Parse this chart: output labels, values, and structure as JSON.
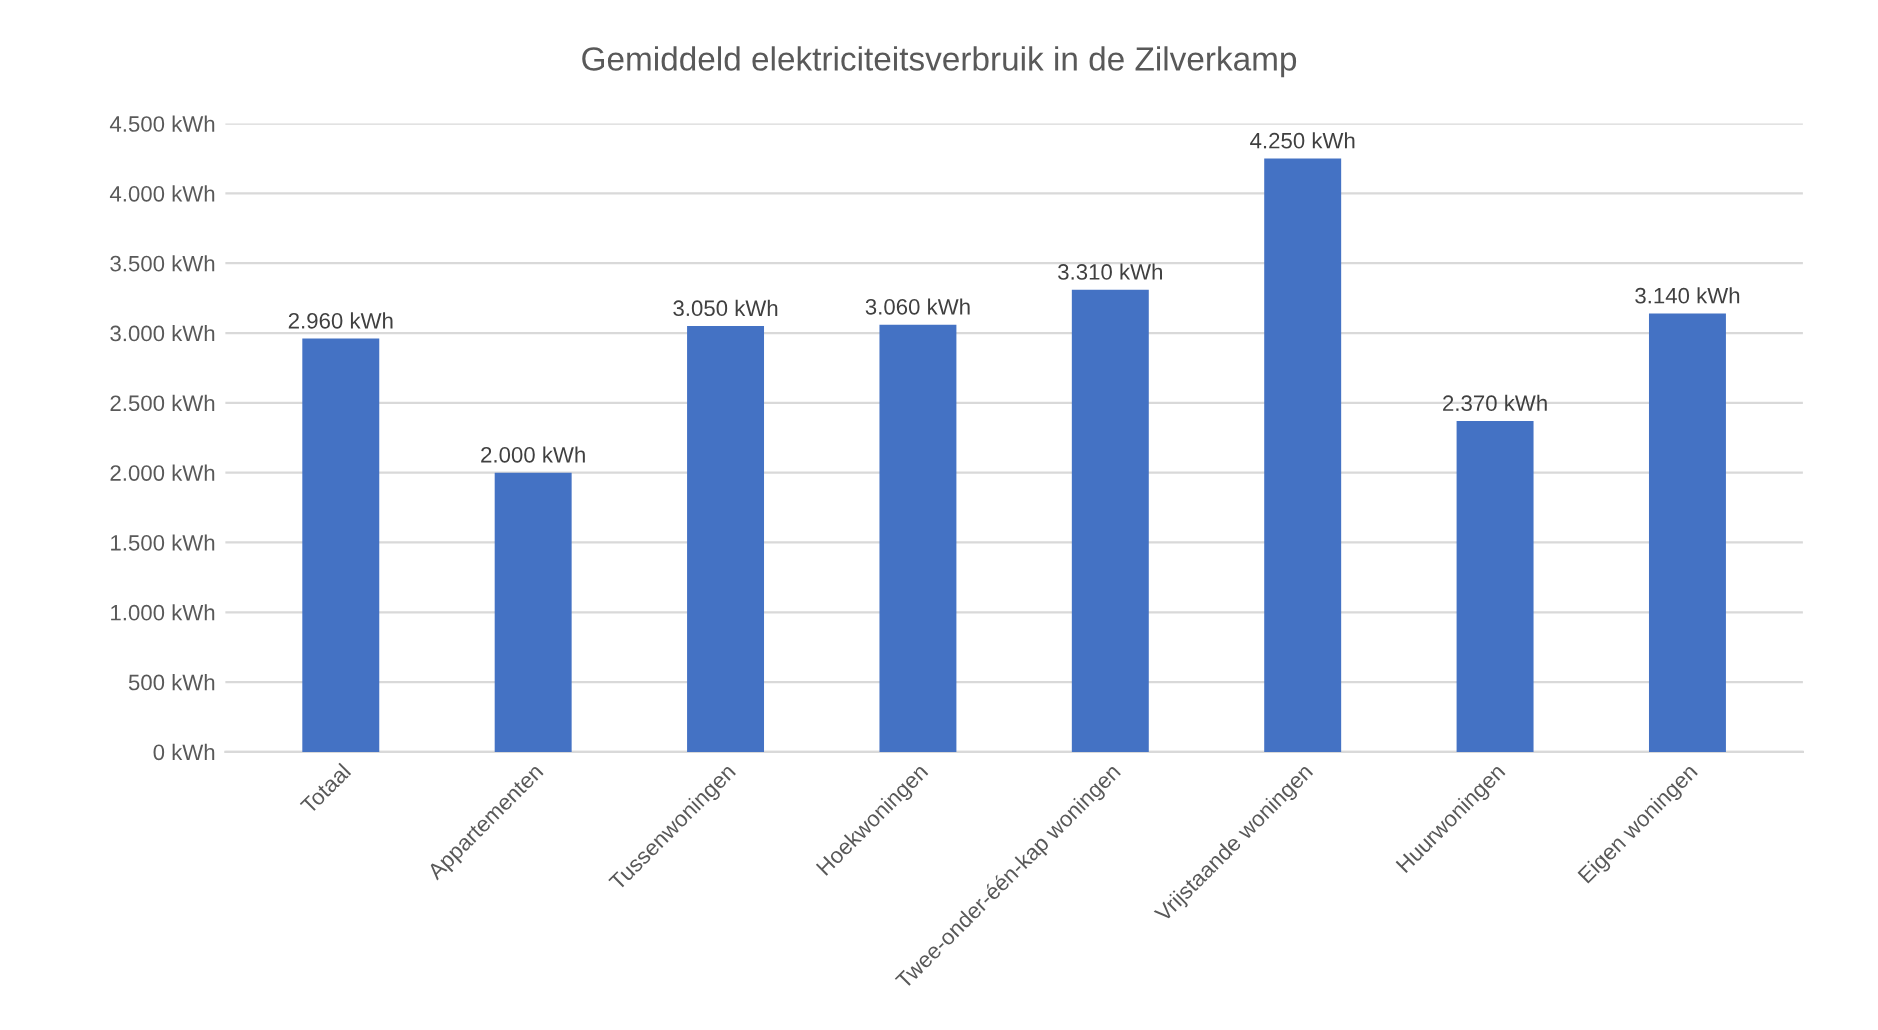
{
  "chart_data": {
    "type": "bar",
    "title": "Gemiddeld elektriciteitsverbruik in de Zilverkamp",
    "categories": [
      "Totaal",
      "Appartementen",
      "Tussenwoningen",
      "Hoekwoningen",
      "Twee-onder-één-kap woningen",
      "Vrijstaande woningen",
      "Huurwoningen",
      "Eigen woningen"
    ],
    "values": [
      2960,
      2000,
      3050,
      3060,
      3310,
      4250,
      2370,
      3140
    ],
    "value_labels": [
      "2.960 kWh",
      "2.000 kWh",
      "3.050 kWh",
      "3.060 kWh",
      "3.310 kWh",
      "4.250 kWh",
      "2.370 kWh",
      "3.140 kWh"
    ],
    "color": "#4472c4",
    "ylim": [
      0,
      4500
    ],
    "yticks": [
      {
        "value": 0,
        "label": "0 kWh"
      },
      {
        "value": 500,
        "label": "500 kWh"
      },
      {
        "value": 1000,
        "label": "1.000 kWh"
      },
      {
        "value": 1500,
        "label": "1.500 kWh"
      },
      {
        "value": 2000,
        "label": "2.000 kWh"
      },
      {
        "value": 2500,
        "label": "2.500 kWh"
      },
      {
        "value": 3000,
        "label": "3.000 kWh"
      },
      {
        "value": 3500,
        "label": "3.500 kWh"
      },
      {
        "value": 4000,
        "label": "4.000 kWh"
      },
      {
        "value": 4500,
        "label": "4.500 kWh"
      }
    ],
    "grid": "y"
  }
}
